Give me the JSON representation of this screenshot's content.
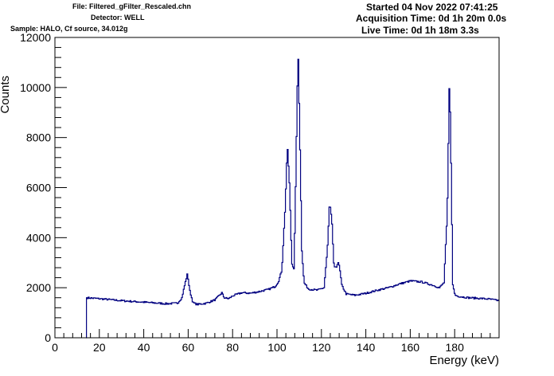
{
  "header": {
    "file": "File: Filtered_gFilter_Rescaled.chn",
    "detector": "Detector: WELL",
    "sample": "Sample: HALO, Cf source, 34.012g",
    "started": "Started 04 Nov 2022 07:41:25",
    "acquisition": "Acquisition Time: 0d 1h 20m 0.0s",
    "live": "Live Time: 0d 1h 18m 3.3s"
  },
  "chart_data": {
    "type": "line",
    "xlabel": "Energy (keV)",
    "ylabel": "Counts",
    "xlim": [
      0,
      200
    ],
    "ylim": [
      0,
      12000
    ],
    "x_ticks": [
      0,
      20,
      40,
      60,
      80,
      100,
      120,
      140,
      160,
      180
    ],
    "y_ticks": [
      0,
      2000,
      4000,
      6000,
      8000,
      10000,
      12000
    ],
    "x_tick_labels": [
      "0",
      "20",
      "40",
      "60",
      "80",
      "100",
      "120",
      "140",
      "160",
      "180"
    ],
    "y_tick_labels": [
      "0",
      "2000",
      "4000",
      "6000",
      "8000",
      "10000",
      "12000"
    ],
    "line_color": "#000080",
    "series": [
      {
        "x": [
          14,
          14.2,
          20,
          25,
          30,
          35,
          40,
          45,
          50,
          55,
          57,
          58.5,
          59.5,
          60.5,
          62,
          64,
          68,
          72,
          74,
          75,
          76,
          78,
          80,
          84,
          88,
          92,
          96,
          99,
          100.5,
          102,
          103.5,
          104.5,
          105.5,
          106.5,
          107.5,
          108.5,
          109.3,
          110,
          111,
          112,
          114,
          118,
          121,
          122.5,
          123.5,
          124.5,
          125.5,
          126.5,
          127.3,
          128,
          129,
          131,
          135,
          140,
          145,
          150,
          155,
          160,
          165,
          170,
          173,
          175,
          176.5,
          177.5,
          178.2,
          179,
          180,
          182,
          186,
          190,
          195,
          200
        ],
        "y": [
          0,
          1600,
          1560,
          1520,
          1480,
          1450,
          1420,
          1390,
          1360,
          1380,
          1600,
          2200,
          2560,
          1900,
          1400,
          1330,
          1380,
          1520,
          1700,
          1800,
          1600,
          1560,
          1680,
          1800,
          1780,
          1850,
          1930,
          2050,
          2250,
          2700,
          5200,
          7700,
          6000,
          3000,
          2700,
          7500,
          11600,
          8500,
          3500,
          2200,
          1950,
          1900,
          2000,
          3500,
          5400,
          4700,
          2800,
          2800,
          3050,
          2800,
          2100,
          1750,
          1700,
          1780,
          1900,
          2000,
          2150,
          2270,
          2230,
          2100,
          2000,
          2200,
          5000,
          10500,
          7000,
          2100,
          1700,
          1650,
          1600,
          1580,
          1550,
          1480
        ]
      }
    ]
  }
}
